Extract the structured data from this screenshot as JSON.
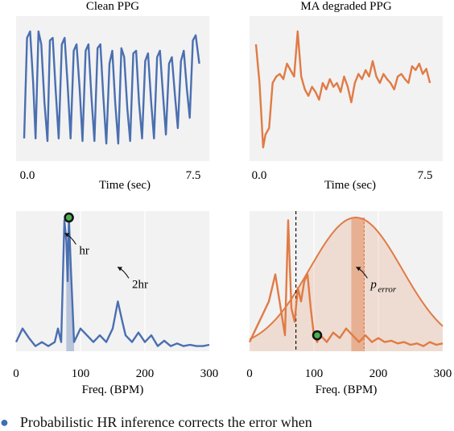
{
  "figure": {
    "caption_fragment": "Probabilistic HR inference corrects the error when"
  },
  "chart_data": [
    {
      "id": "clean-ppg",
      "type": "line",
      "title": "Clean PPG",
      "xlabel": "Time (sec)",
      "ylabel": "",
      "x_ticks": [
        "0.0",
        "7.5"
      ],
      "xlim": [
        0,
        7.5
      ],
      "ylim": [
        0,
        1
      ],
      "grid": false,
      "color": "#4a6fb0",
      "series": [
        {
          "x": [
            0.0,
            0.12,
            0.25,
            0.38,
            0.48,
            0.6,
            0.72,
            0.85,
            0.98,
            1.08,
            1.2,
            1.32,
            1.45,
            1.58,
            1.7,
            1.82,
            1.95,
            2.08,
            2.2,
            2.33,
            2.45,
            2.58,
            2.7,
            2.82,
            2.95,
            3.08,
            3.2,
            3.32,
            3.45,
            3.58,
            3.7,
            3.82,
            3.95,
            4.08,
            4.2,
            4.33,
            4.45,
            4.58,
            4.7,
            4.82,
            4.95,
            5.08,
            5.2,
            5.33,
            5.45,
            5.58,
            5.7,
            5.83,
            5.95,
            6.08,
            6.2,
            6.33,
            6.45,
            6.58,
            6.7,
            6.83,
            6.95,
            7.08,
            7.2,
            7.35
          ],
          "y": [
            0.12,
            0.9,
            0.95,
            0.55,
            0.12,
            0.95,
            0.85,
            0.4,
            0.1,
            0.88,
            0.9,
            0.5,
            0.12,
            0.85,
            0.9,
            0.55,
            0.12,
            0.8,
            0.85,
            0.5,
            0.1,
            0.8,
            0.85,
            0.45,
            0.1,
            0.82,
            0.85,
            0.45,
            0.08,
            0.7,
            0.8,
            0.4,
            0.08,
            0.82,
            0.75,
            0.35,
            0.1,
            0.78,
            0.8,
            0.4,
            0.12,
            0.72,
            0.78,
            0.4,
            0.12,
            0.75,
            0.8,
            0.45,
            0.15,
            0.7,
            0.75,
            0.45,
            0.2,
            0.72,
            0.8,
            0.5,
            0.28,
            0.88,
            0.92,
            0.7
          ]
        }
      ]
    },
    {
      "id": "ma-degraded-ppg",
      "type": "line",
      "title": "MA degraded PPG",
      "xlabel": "Time (sec)",
      "ylabel": "",
      "x_ticks": [
        "0.0",
        "7.5"
      ],
      "xlim": [
        0,
        7.5
      ],
      "ylim": [
        0,
        1
      ],
      "grid": false,
      "color": "#e07b45",
      "series": [
        {
          "x": [
            0.0,
            0.15,
            0.3,
            0.4,
            0.55,
            0.7,
            0.85,
            1.0,
            1.15,
            1.3,
            1.45,
            1.6,
            1.75,
            1.9,
            2.05,
            2.2,
            2.35,
            2.5,
            2.65,
            2.8,
            2.95,
            3.1,
            3.25,
            3.4,
            3.55,
            3.7,
            3.85,
            4.0,
            4.15,
            4.3,
            4.45,
            4.6,
            4.75,
            4.9,
            5.05,
            5.2,
            5.35,
            5.5,
            5.65,
            5.8,
            5.95,
            6.1,
            6.25,
            6.4,
            6.55,
            6.7,
            6.85,
            7.0,
            7.15,
            7.3
          ],
          "y": [
            0.85,
            0.55,
            0.05,
            0.15,
            0.2,
            0.55,
            0.6,
            0.62,
            0.58,
            0.7,
            0.65,
            0.6,
            0.95,
            0.6,
            0.5,
            0.45,
            0.52,
            0.48,
            0.42,
            0.55,
            0.5,
            0.58,
            0.52,
            0.55,
            0.48,
            0.6,
            0.52,
            0.4,
            0.55,
            0.62,
            0.58,
            0.65,
            0.6,
            0.72,
            0.6,
            0.55,
            0.62,
            0.58,
            0.55,
            0.5,
            0.6,
            0.62,
            0.58,
            0.55,
            0.68,
            0.65,
            0.7,
            0.62,
            0.66,
            0.55
          ]
        }
      ]
    },
    {
      "id": "clean-spectrum",
      "type": "area",
      "title": "",
      "xlabel": "Freq. (BPM)",
      "ylabel": "",
      "x_ticks": [
        0,
        100,
        200,
        300
      ],
      "xlim": [
        0,
        300
      ],
      "ylim": [
        0,
        1
      ],
      "grid": true,
      "color": "#4a6fb0",
      "series": [
        {
          "x": [
            0,
            10,
            20,
            30,
            40,
            50,
            60,
            65,
            70,
            75,
            78,
            80,
            82,
            85,
            90,
            95,
            100,
            110,
            120,
            130,
            140,
            150,
            158,
            165,
            170,
            180,
            190,
            200,
            210,
            220,
            230,
            240,
            250,
            260,
            270,
            280,
            290,
            300
          ],
          "y": [
            0.05,
            0.15,
            0.08,
            0.02,
            0.05,
            0.02,
            0.05,
            0.15,
            0.05,
            0.95,
            0.8,
            0.5,
            0.97,
            0.6,
            0.05,
            0.1,
            0.15,
            0.1,
            0.05,
            0.1,
            0.05,
            0.15,
            0.35,
            0.2,
            0.1,
            0.05,
            0.12,
            0.05,
            0.1,
            0.02,
            0.06,
            0.02,
            0.04,
            0.02,
            0.03,
            0.02,
            0.02,
            0.03
          ]
        }
      ],
      "highlight_band": [
        78,
        90
      ],
      "marker": {
        "x": 82,
        "y": 0.97
      },
      "annotations": [
        {
          "text": "hr",
          "x": 98,
          "y": 0.7
        },
        {
          "text": "2hr",
          "x": 180,
          "y": 0.45
        }
      ]
    },
    {
      "id": "degraded-spectrum",
      "type": "area",
      "title": "",
      "xlabel": "Freq. (BPM)",
      "ylabel": "",
      "x_ticks": [
        0,
        100,
        200,
        300
      ],
      "xlim": [
        0,
        300
      ],
      "ylim": [
        0,
        1
      ],
      "grid": true,
      "color": "#e07b45",
      "series": [
        {
          "x": [
            0,
            10,
            20,
            30,
            40,
            50,
            55,
            60,
            65,
            70,
            75,
            80,
            85,
            90,
            95,
            100,
            105,
            110,
            120,
            130,
            140,
            150,
            160,
            170,
            180,
            190,
            200,
            210,
            220,
            230,
            240,
            250,
            260,
            270,
            280,
            290,
            300
          ],
          "y": [
            0.05,
            0.15,
            0.25,
            0.35,
            0.55,
            0.25,
            0.1,
            0.95,
            0.3,
            0.2,
            0.45,
            0.35,
            0.5,
            0.55,
            0.3,
            0.1,
            0.05,
            0.1,
            0.05,
            0.12,
            0.08,
            0.15,
            0.1,
            0.05,
            0.1,
            0.05,
            0.08,
            0.05,
            0.06,
            0.04,
            0.05,
            0.03,
            0.04,
            0.02,
            0.05,
            0.03,
            0.04
          ]
        }
      ],
      "gaussian": {
        "mean": 165,
        "sd": 72,
        "peak": 0.97
      },
      "highlight_band": [
        158,
        178
      ],
      "threshold_x": 72,
      "marker": {
        "x": 105,
        "y": 0.1
      },
      "annotations": [
        {
          "text": "p",
          "subscript": "error",
          "x": 188,
          "y": 0.45
        }
      ]
    }
  ]
}
